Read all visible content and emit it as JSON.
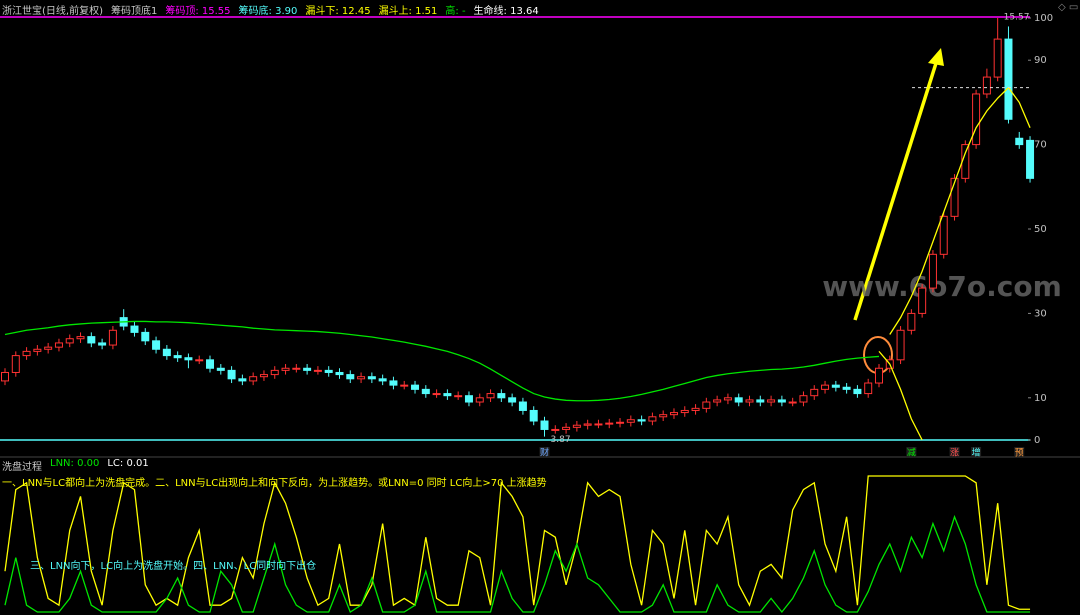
{
  "chart_data": [
    {
      "type": "candlestick",
      "header": [
        {
          "text": "浙江世宝(日线,前复权)",
          "color": "#c8c8c8"
        },
        {
          "text": "筹码顶底1",
          "color": "#c8c8c8"
        },
        {
          "text": "筹码顶: 15.55",
          "color": "#ff00ff"
        },
        {
          "text": "筹码底: 3.90",
          "color": "#54fcfc"
        },
        {
          "text": "漏斗下: 12.45",
          "color": "#ffff00"
        },
        {
          "text": "漏斗上: 1.51",
          "color": "#ffff00"
        },
        {
          "text": "高: -",
          "color": "#00e600"
        },
        {
          "text": "生命线: 13.64",
          "color": "#ffffff"
        }
      ],
      "watermark": "www.6o7o.com",
      "ylim": [
        0,
        100
      ],
      "yticks": [
        0,
        10,
        30,
        50,
        70,
        90,
        100
      ],
      "up_color": "#ff3232",
      "down_color": "#54fcfc",
      "open": [
        14,
        16,
        20,
        21,
        21.5,
        22,
        23,
        24,
        24.5,
        23,
        22.5,
        29,
        27,
        25.5,
        23.5,
        21.5,
        20,
        19.5,
        19,
        19,
        17,
        16.5,
        14.5,
        14,
        15,
        15.5,
        16.5,
        17,
        17,
        16.5,
        16.5,
        16,
        15.5,
        14.5,
        15,
        14.5,
        14,
        13,
        13,
        12,
        11,
        11,
        10.5,
        10.5,
        9,
        10,
        11,
        10,
        9,
        7,
        4.5,
        2.5,
        2.5,
        3,
        3.5,
        3.8,
        3.8,
        4,
        4.2,
        4.8,
        4.5,
        5.5,
        6,
        6.5,
        7,
        7.5,
        9,
        9.5,
        10,
        9,
        9.5,
        9,
        9.5,
        9,
        9,
        10.5,
        12,
        13,
        12.5,
        12,
        11,
        13.5,
        17,
        19,
        26,
        30,
        36,
        44,
        53,
        62,
        70,
        82,
        86,
        95,
        71.5,
        71
      ],
      "high": [
        17,
        21,
        22,
        22.5,
        23,
        24,
        25,
        25.5,
        25.5,
        24,
        27,
        31,
        28,
        26.5,
        24.5,
        22.5,
        21,
        20.5,
        20,
        20,
        18,
        17.5,
        15.5,
        16,
        16.5,
        17.5,
        18,
        18,
        18,
        17.5,
        17.5,
        17,
        16.5,
        16,
        16,
        15.5,
        15,
        14,
        14,
        13,
        12,
        12,
        11.5,
        11.5,
        11,
        12,
        12,
        11,
        10,
        8,
        5.5,
        3.5,
        4,
        4.5,
        4.8,
        4.8,
        5,
        5.2,
        5.8,
        5.8,
        6.5,
        7,
        7.5,
        8,
        8.5,
        10,
        10.5,
        11,
        11,
        10.5,
        10.5,
        10.5,
        10.5,
        10,
        11.5,
        13,
        14,
        14,
        13.5,
        13,
        14.5,
        18,
        20,
        27,
        31,
        37,
        45,
        54,
        63,
        71,
        83,
        88,
        100,
        98,
        73,
        72
      ],
      "low": [
        13,
        15,
        19,
        20,
        20.5,
        21,
        22,
        23,
        22,
        21.5,
        21.5,
        26,
        24.5,
        22.5,
        20.5,
        19,
        18.5,
        17,
        18,
        16,
        15.5,
        13.5,
        13,
        13,
        14,
        14.5,
        15.5,
        16,
        15.5,
        15.5,
        15,
        14.5,
        13.5,
        13.5,
        13.5,
        13,
        12,
        12,
        11,
        10,
        10,
        9.5,
        9.5,
        8,
        8,
        9,
        9,
        8,
        6,
        3.5,
        0.8,
        1.5,
        1.5,
        2,
        2.5,
        2.8,
        2.8,
        3,
        3.2,
        3.5,
        3.5,
        4.5,
        5,
        5.5,
        6,
        6.5,
        8,
        8.5,
        8,
        8,
        8,
        8,
        8,
        8,
        8,
        9.5,
        11,
        11.5,
        11,
        10,
        10,
        12.5,
        16,
        18,
        25,
        29,
        35,
        43,
        52,
        61,
        69,
        81,
        85,
        75,
        69,
        61
      ],
      "close": [
        16,
        20,
        21,
        21.5,
        22,
        23,
        24,
        24.5,
        23,
        22.5,
        26,
        27,
        25.5,
        23.5,
        21.5,
        20,
        19.5,
        19,
        19,
        17,
        16.5,
        14.5,
        14,
        15,
        15.5,
        16.5,
        17,
        17,
        16.5,
        16.5,
        16,
        15.5,
        14.5,
        15,
        14.5,
        14,
        13,
        13,
        12,
        11,
        11,
        10.5,
        10.5,
        9,
        10,
        11,
        10,
        9,
        7,
        4.5,
        2.5,
        2.5,
        3,
        3.5,
        3.8,
        3.8,
        4,
        4.2,
        4.8,
        4.5,
        5.5,
        6,
        6.5,
        7,
        7.5,
        9,
        9.5,
        10,
        9,
        9.5,
        9,
        9.5,
        9,
        9,
        10.5,
        12,
        13,
        12.5,
        12,
        11,
        13.5,
        17,
        19,
        26,
        30,
        36,
        44,
        53,
        62,
        70,
        82,
        86,
        95,
        76,
        70,
        62
      ],
      "lines": [
        {
          "color": "#00e600",
          "values": [
            25,
            25.5,
            26,
            26.3,
            26.6,
            27,
            27.3,
            27.5,
            27.7,
            27.8,
            27.9,
            28,
            28.1,
            28.1,
            28,
            28,
            27.9,
            27.8,
            27.6,
            27.4,
            27.2,
            27,
            26.8,
            26.5,
            26.3,
            26.1,
            26,
            25.9,
            25.8,
            25.7,
            25.5,
            25.3,
            25,
            24.7,
            24.4,
            24,
            23.6,
            23.2,
            22.7,
            22.2,
            21.6,
            21,
            20.2,
            19.3,
            18.2,
            16.8,
            15.3,
            13.8,
            12.3,
            11,
            10.2,
            9.7,
            9.4,
            9.3,
            9.3,
            9.4,
            9.6,
            9.9,
            10.3,
            10.8,
            11.4,
            12,
            12.7,
            13.4,
            14.1,
            14.8,
            15.3,
            15.7,
            16,
            16.3,
            16.5,
            16.7,
            16.8,
            17,
            17.3,
            17.7,
            18.2,
            18.7,
            19.1,
            19.4,
            19.6,
            19.8,
            null,
            null,
            null,
            null,
            null,
            null,
            null,
            null,
            null,
            null,
            null,
            null,
            null,
            null
          ]
        },
        {
          "color": "#ffff00",
          "values": [
            null,
            null,
            null,
            null,
            null,
            null,
            null,
            null,
            null,
            null,
            null,
            null,
            null,
            null,
            null,
            null,
            null,
            null,
            null,
            null,
            null,
            null,
            null,
            null,
            null,
            null,
            null,
            null,
            null,
            null,
            null,
            null,
            null,
            null,
            null,
            null,
            null,
            null,
            null,
            null,
            null,
            null,
            null,
            null,
            null,
            null,
            null,
            null,
            null,
            null,
            null,
            null,
            null,
            null,
            null,
            null,
            null,
            null,
            null,
            null,
            null,
            null,
            null,
            null,
            null,
            null,
            null,
            null,
            null,
            null,
            null,
            null,
            null,
            null,
            null,
            null,
            null,
            null,
            null,
            null,
            null,
            21,
            18,
            12,
            5,
            0,
            null,
            null,
            null,
            null,
            null,
            null,
            null,
            null,
            null,
            null
          ]
        },
        {
          "color": "#ffff00",
          "values": [
            null,
            null,
            null,
            null,
            null,
            null,
            null,
            null,
            null,
            null,
            null,
            null,
            null,
            null,
            null,
            null,
            null,
            null,
            null,
            null,
            null,
            null,
            null,
            null,
            null,
            null,
            null,
            null,
            null,
            null,
            null,
            null,
            null,
            null,
            null,
            null,
            null,
            null,
            null,
            null,
            null,
            null,
            null,
            null,
            null,
            null,
            null,
            null,
            null,
            null,
            null,
            null,
            null,
            null,
            null,
            null,
            null,
            null,
            null,
            null,
            null,
            null,
            null,
            null,
            null,
            null,
            null,
            null,
            null,
            null,
            null,
            null,
            null,
            null,
            null,
            null,
            null,
            null,
            null,
            null,
            null,
            null,
            25,
            29,
            34,
            40,
            47,
            54,
            61,
            68,
            74,
            78,
            81,
            83.5,
            80,
            74
          ]
        }
      ],
      "level": 83.5,
      "annotations": [
        {
          "text": "15.57",
          "index": 92
        },
        {
          "text": "3.87",
          "index": 50
        }
      ],
      "signals": [
        {
          "text": "财",
          "index": 50,
          "color": "#6fa8ff"
        },
        {
          "text": "减",
          "index": 84,
          "color": "#00e600"
        },
        {
          "text": "涨",
          "index": 88,
          "color": "#ff5050"
        },
        {
          "text": "增",
          "index": 90,
          "color": "#54fcfc"
        },
        {
          "text": "预",
          "index": 94,
          "color": "#ff9a3c"
        }
      ]
    },
    {
      "type": "line",
      "header": [
        {
          "text": "洗盘过程",
          "color": "#c8c8c8"
        },
        {
          "text": "LNN: 0.00",
          "color": "#00e600"
        },
        {
          "text": "LC: 0.01",
          "color": "#ffffff"
        }
      ],
      "notes": [
        {
          "text": "一、LNN与LC都向上为洗盘完成。二、LNN与LC出现向上和向下反向，为上涨趋势。或LNN=0 同时 LC向上>70 上涨趋势",
          "color": "#ffff00"
        },
        {
          "text": "三、LNN向下，LC向上为洗盘开始。四、LNN、LC同时向下出仓",
          "color": "#54fcfc"
        }
      ],
      "ylim": [
        0,
        100
      ],
      "series": [
        {
          "name": "LC",
          "color": "#ffff00",
          "values": [
            30,
            90,
            95,
            40,
            10,
            5,
            60,
            85,
            30,
            5,
            60,
            95,
            90,
            20,
            5,
            10,
            5,
            40,
            60,
            5,
            5,
            10,
            40,
            25,
            65,
            95,
            80,
            55,
            25,
            5,
            10,
            50,
            5,
            5,
            20,
            65,
            5,
            10,
            5,
            55,
            10,
            5,
            5,
            45,
            40,
            5,
            95,
            85,
            70,
            5,
            60,
            55,
            20,
            50,
            95,
            85,
            90,
            85,
            35,
            5,
            60,
            50,
            10,
            60,
            5,
            60,
            50,
            70,
            20,
            5,
            30,
            35,
            25,
            75,
            90,
            95,
            50,
            30,
            70,
            5,
            100,
            100,
            100,
            100,
            100,
            100,
            100,
            100,
            100,
            100,
            95,
            20,
            80,
            5,
            2,
            2
          ]
        },
        {
          "name": "LNN",
          "color": "#00e600",
          "values": [
            5,
            40,
            5,
            0,
            0,
            0,
            10,
            30,
            5,
            0,
            0,
            0,
            0,
            0,
            0,
            10,
            25,
            5,
            0,
            0,
            30,
            20,
            0,
            0,
            25,
            50,
            20,
            5,
            0,
            0,
            0,
            20,
            0,
            5,
            25,
            0,
            0,
            0,
            5,
            30,
            0,
            0,
            0,
            0,
            0,
            0,
            30,
            10,
            0,
            0,
            20,
            45,
            30,
            50,
            25,
            20,
            10,
            0,
            0,
            0,
            5,
            20,
            0,
            0,
            0,
            0,
            20,
            5,
            0,
            0,
            0,
            10,
            0,
            10,
            25,
            45,
            20,
            5,
            0,
            0,
            15,
            35,
            50,
            30,
            55,
            40,
            65,
            45,
            70,
            50,
            20,
            0,
            0,
            0,
            0,
            0
          ]
        }
      ]
    }
  ]
}
